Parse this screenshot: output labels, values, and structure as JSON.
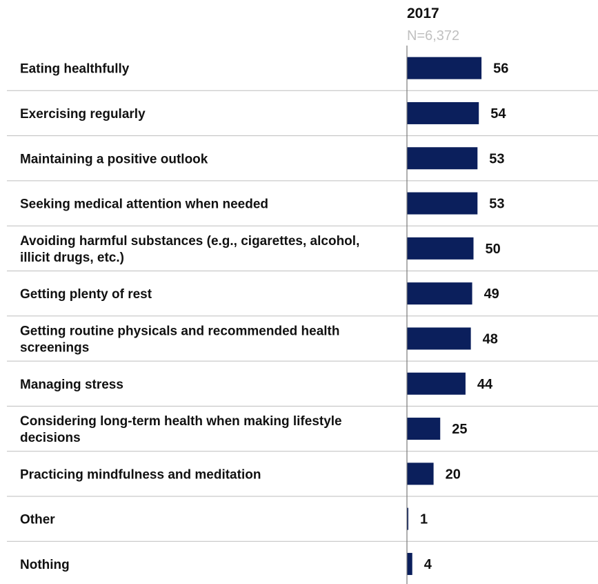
{
  "chart_data": {
    "type": "bar",
    "orientation": "horizontal",
    "series": [
      {
        "name": "2017",
        "subtitle": "N=6,372",
        "values": [
          56,
          54,
          53,
          53,
          50,
          49,
          48,
          44,
          25,
          20,
          1,
          4
        ]
      }
    ],
    "categories": [
      [
        "Eating healthfully"
      ],
      [
        "Exercising regularly"
      ],
      [
        "Maintaining a positive outlook"
      ],
      [
        "Seeking medical attention when needed"
      ],
      [
        "Avoiding harmful substances (e.g., cigarettes, alcohol,",
        "illicit drugs, etc.)"
      ],
      [
        "Getting plenty of rest"
      ],
      [
        "Getting routine physicals and recommended health",
        "screenings"
      ],
      [
        "Managing stress"
      ],
      [
        "Considering long-term health when making lifestyle",
        "decisions"
      ],
      [
        "Practicing mindfulness and meditation"
      ],
      [
        "Other"
      ],
      [
        "Nothing"
      ]
    ],
    "bar_color": "#0b1f5c",
    "xlim": [
      0,
      100
    ],
    "grid": false,
    "data_labels": true
  }
}
